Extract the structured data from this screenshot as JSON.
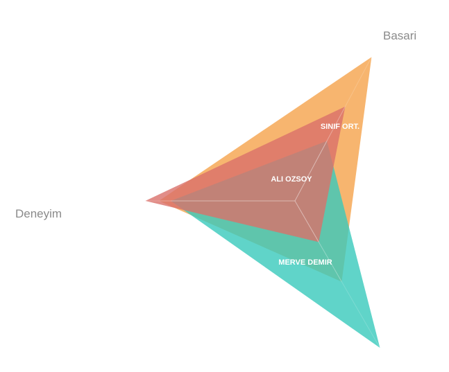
{
  "chart_data": {
    "type": "radar",
    "axes": [
      "Basari",
      "Deneyim",
      ""
    ],
    "range": [
      0,
      100
    ],
    "grid": false,
    "legend": "none",
    "series": [
      {
        "name": "SINIF ORT.",
        "values": [
          96,
          80,
          55
        ],
        "color": "#f5a24b"
      },
      {
        "name": "MERVE DEMIR",
        "values": [
          40,
          73,
          100
        ],
        "color": "#38c9bc"
      },
      {
        "name": "ALI OZSOY",
        "values": [
          63,
          88,
          28
        ],
        "color": "#d9706a"
      }
    ]
  }
}
